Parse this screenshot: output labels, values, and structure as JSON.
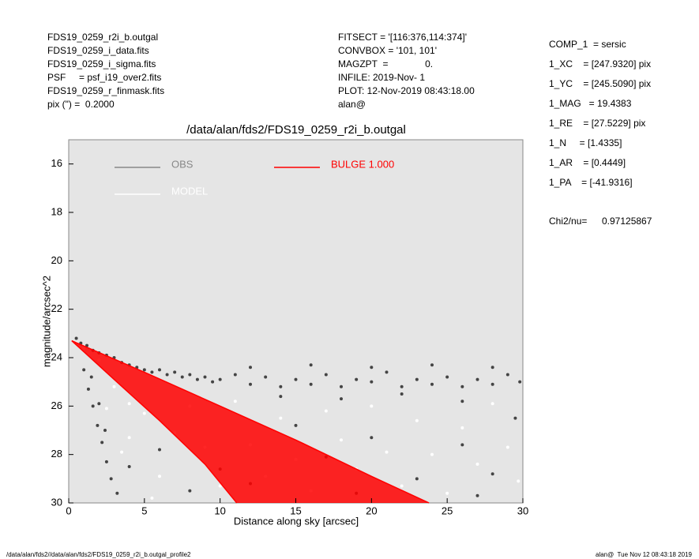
{
  "header": {
    "left": [
      "FDS19_0259_r2i_b.outgal",
      "FDS19_0259_i_data.fits",
      "FDS19_0259_i_sigma.fits",
      "PSF     = psf_i19_over2.fits",
      "FDS19_0259_r_finmask.fits",
      "pix (\") =  0.2000"
    ],
    "middle": [
      "FITSECT = '[116:376,114:374]'",
      "CONVBOX = '101, 101'",
      "MAGZPT  =              0.",
      "INFILE: 2019-Nov- 1",
      "PLOT: 12-Nov-2019 08:43:18.00",
      "alan@"
    ],
    "right": [
      "COMP_1  = sersic",
      "1_XC    = [247.9320] pix",
      "1_YC    = [245.5090] pix",
      "1_MAG   = 19.4383",
      "1_RE    = [27.5229] pix",
      "1_N     = [1.4335]",
      "1_AR    = [0.4449]",
      "1_PA    = [-41.9316]"
    ],
    "chi_label": "Chi2/nu=",
    "chi_value": "0.97125867"
  },
  "footer": {
    "left": "/data/alan/fds2//data/alan/fds2/FDS19_0259_r2i_b.outgal_profile2",
    "right": "alan@  Tue Nov 12 08:43:18 2019"
  },
  "chart_data": {
    "type": "scatter",
    "title": "/data/alan/fds2/FDS19_0259_r2i_b.outgal",
    "x_label": "Distance along sky [arcsec]",
    "y_label": "magnitude/arcsec^2",
    "xlim": [
      0,
      30
    ],
    "xticks": [
      0,
      5,
      10,
      15,
      20,
      25,
      30
    ],
    "ylim": [
      30,
      15
    ],
    "yticks": [
      16,
      18,
      20,
      22,
      24,
      26,
      28,
      30
    ],
    "background": "#e5e5e5",
    "series": [
      {
        "name": "OBS",
        "color": "#444444",
        "x": [
          0.5,
          0.8,
          1.2,
          1.6,
          2.0,
          2.5,
          3,
          3.5,
          4,
          4.5,
          5,
          5.5,
          6,
          6.5,
          7,
          7.5,
          8,
          8.5,
          9,
          9.5,
          10,
          11,
          12,
          13,
          14,
          15,
          16,
          17,
          18,
          19,
          20,
          21,
          22,
          23,
          24,
          25,
          26,
          27,
          28,
          29,
          29.8,
          12,
          16,
          20,
          24,
          28,
          14,
          18,
          22,
          26,
          1,
          1.3,
          1.6,
          1.9,
          2.2,
          2.5,
          2.8,
          3.2,
          1.5,
          2.0,
          2.4,
          6,
          8,
          10,
          12,
          15,
          17,
          20,
          23,
          26,
          28,
          29.5,
          27,
          19,
          4
        ],
        "y": [
          23.2,
          23.4,
          23.5,
          23.7,
          23.8,
          23.9,
          24.0,
          24.2,
          24.3,
          24.4,
          24.5,
          24.6,
          24.5,
          24.7,
          24.6,
          24.8,
          24.7,
          24.9,
          24.8,
          25.0,
          24.9,
          24.7,
          25.1,
          24.8,
          25.2,
          24.9,
          25.1,
          24.7,
          25.2,
          24.9,
          25.0,
          24.6,
          25.2,
          24.9,
          25.1,
          24.8,
          25.2,
          24.9,
          25.1,
          24.7,
          25.0,
          24.4,
          24.3,
          24.4,
          24.3,
          24.4,
          25.6,
          25.7,
          25.5,
          25.8,
          24.5,
          25.3,
          26.0,
          26.8,
          27.5,
          28.3,
          29.0,
          29.6,
          24.8,
          25.9,
          27.0,
          27.8,
          29.5,
          28.6,
          29.2,
          26.8,
          28.1,
          27.3,
          29.0,
          27.6,
          28.8,
          26.5,
          29.7,
          29.6,
          28.5
        ]
      },
      {
        "name": "MODEL",
        "color": "#ffffff",
        "x": [
          0.5,
          1,
          2,
          3,
          4,
          4,
          5,
          6,
          7,
          8,
          9,
          10,
          11,
          12,
          13,
          14,
          15,
          16,
          17,
          18,
          19,
          20,
          21,
          22,
          23,
          24,
          25,
          26,
          27,
          28,
          29,
          29.7,
          5.5,
          3.5,
          2.5
        ],
        "y": [
          23.4,
          23.6,
          24.1,
          25.2,
          25.9,
          27.3,
          26.3,
          28.9,
          27.1,
          26.0,
          27.7,
          29.3,
          25.8,
          27.6,
          28.9,
          26.5,
          28.2,
          29.5,
          26.2,
          27.4,
          28.6,
          26.0,
          27.9,
          29.3,
          26.6,
          28.0,
          29.6,
          26.9,
          28.4,
          25.9,
          27.7,
          29.1,
          29.8,
          27.9,
          26.1
        ]
      },
      {
        "name": "BULGE 1.000",
        "color": "#ff0000",
        "x": [
          0.2,
          3,
          6,
          9,
          11.1
        ],
        "lower": [
          23.3,
          24.9,
          26.6,
          28.4,
          30
        ],
        "x_upper": [
          0.2,
          5,
          10,
          15,
          20,
          23.8
        ],
        "upper": [
          23.3,
          24.6,
          26.0,
          27.4,
          28.9,
          30
        ]
      }
    ]
  }
}
